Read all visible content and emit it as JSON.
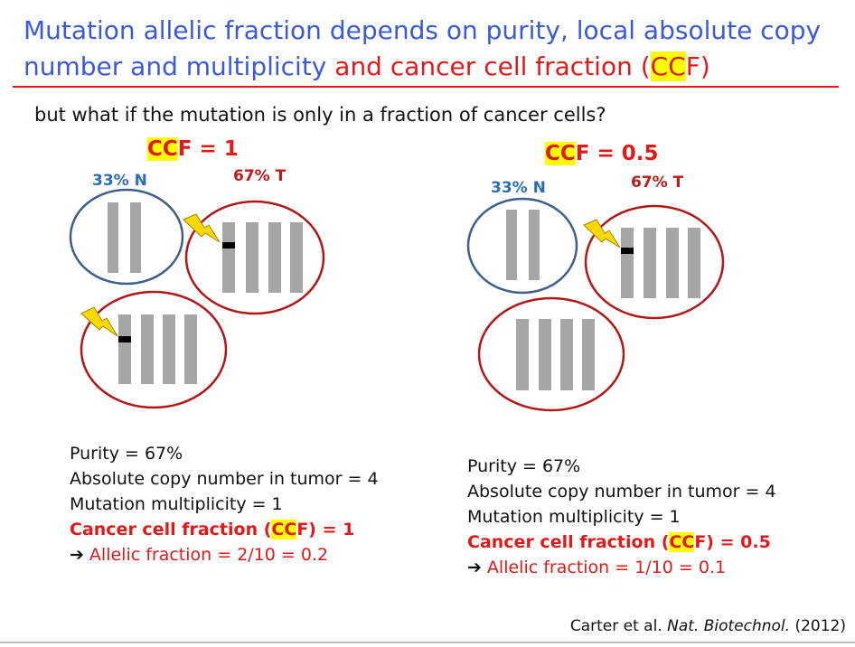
{
  "title": {
    "part1": "Mutation allelic fraction depends on purity, local absolute copy number and multiplicity",
    "part2": "and cancer cell fraction (",
    "part3": "CC",
    "part4": "F)"
  },
  "question": "but what if the mutation is only in a fraction of cancer cells?",
  "panels": [
    {
      "ccf_prefix": "CC",
      "ccf_suffix": "F = 1",
      "normal_label": "33% N",
      "tumor_label": "67% T",
      "stats": {
        "purity": "Purity = 67%",
        "copy": "Absolute copy number in tumor = 4",
        "multiplicity": "Mutation multiplicity = 1",
        "ccf_a": "Cancer cell fraction (",
        "ccf_b": "CC",
        "ccf_c": "F) = 1",
        "arrow": "➔",
        "af": "Allelic fraction = 2/10 = 0.2"
      }
    },
    {
      "ccf_prefix": "CC",
      "ccf_suffix": "F = 0.5",
      "normal_label": "33% N",
      "tumor_label": "67% T",
      "stats": {
        "purity": "Purity = 67%",
        "copy": "Absolute copy number in tumor = 4",
        "multiplicity": "Mutation multiplicity = 1",
        "ccf_a": "Cancer cell fraction (",
        "ccf_b": "CC",
        "ccf_c": "F) = 0.5",
        "arrow": "➔",
        "af": "Allelic fraction = 1/10 = 0.1"
      }
    }
  ],
  "citation": {
    "authors": "Carter et al.",
    "journal": "Nat. Biotechnol.",
    "year": "(2012)"
  },
  "colors": {
    "normal_cell": "#3e5f8a",
    "tumor_cell": "#b01818",
    "chromosome": "#a6a6a6",
    "mutation": "#000000",
    "bolt": "#ffd800"
  },
  "icons": {
    "mutation_marker": "lightning-bolt-icon"
  }
}
